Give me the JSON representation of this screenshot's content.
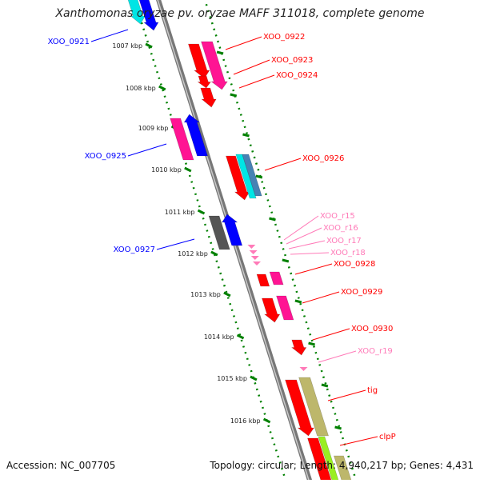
{
  "title": "Xanthomonas oryzae pv. oryzae MAFF 311018, complete genome",
  "accession": "Accession: NC_007705",
  "topology": "Topology: circular; Length: 4,940,217 bp; Genes: 4,431",
  "colors": {
    "red": "#ff0000",
    "magenta": "#ff1493",
    "pink": "#ff7ab8",
    "blue": "#0000ff",
    "gray": "#555555",
    "cyan": "#00e5e5",
    "steel": "#4682b4",
    "khaki": "#bdb76b",
    "lime": "#99ee22",
    "tick": "#008000",
    "backbone": "#888888"
  },
  "ticks": [
    {
      "label": "1007 kbp"
    },
    {
      "label": "1008 kbp"
    },
    {
      "label": "1009 kbp"
    },
    {
      "label": "1010 kbp"
    },
    {
      "label": "1011 kbp"
    },
    {
      "label": "1012 kbp"
    },
    {
      "label": "1013 kbp"
    },
    {
      "label": "1014 kbp"
    },
    {
      "label": "1015 kbp"
    },
    {
      "label": "1016 kbp"
    }
  ],
  "genes": [
    {
      "name": "XOO_0921",
      "color": "blue"
    },
    {
      "name": "XOO_0922",
      "color": "red"
    },
    {
      "name": "XOO_0923",
      "color": "red"
    },
    {
      "name": "XOO_0924",
      "color": "red"
    },
    {
      "name": "XOO_0925",
      "color": "blue"
    },
    {
      "name": "XOO_0926",
      "color": "red"
    },
    {
      "name": "XOO_r15",
      "color": "pink"
    },
    {
      "name": "XOO_r16",
      "color": "pink"
    },
    {
      "name": "XOO_r17",
      "color": "pink"
    },
    {
      "name": "XOO_r18",
      "color": "pink"
    },
    {
      "name": "XOO_0927",
      "color": "blue"
    },
    {
      "name": "XOO_0928",
      "color": "red"
    },
    {
      "name": "XOO_0929",
      "color": "red"
    },
    {
      "name": "XOO_0930",
      "color": "red"
    },
    {
      "name": "XOO_r19",
      "color": "pink"
    },
    {
      "name": "tig",
      "color": "red"
    },
    {
      "name": "clpP",
      "color": "red"
    }
  ]
}
